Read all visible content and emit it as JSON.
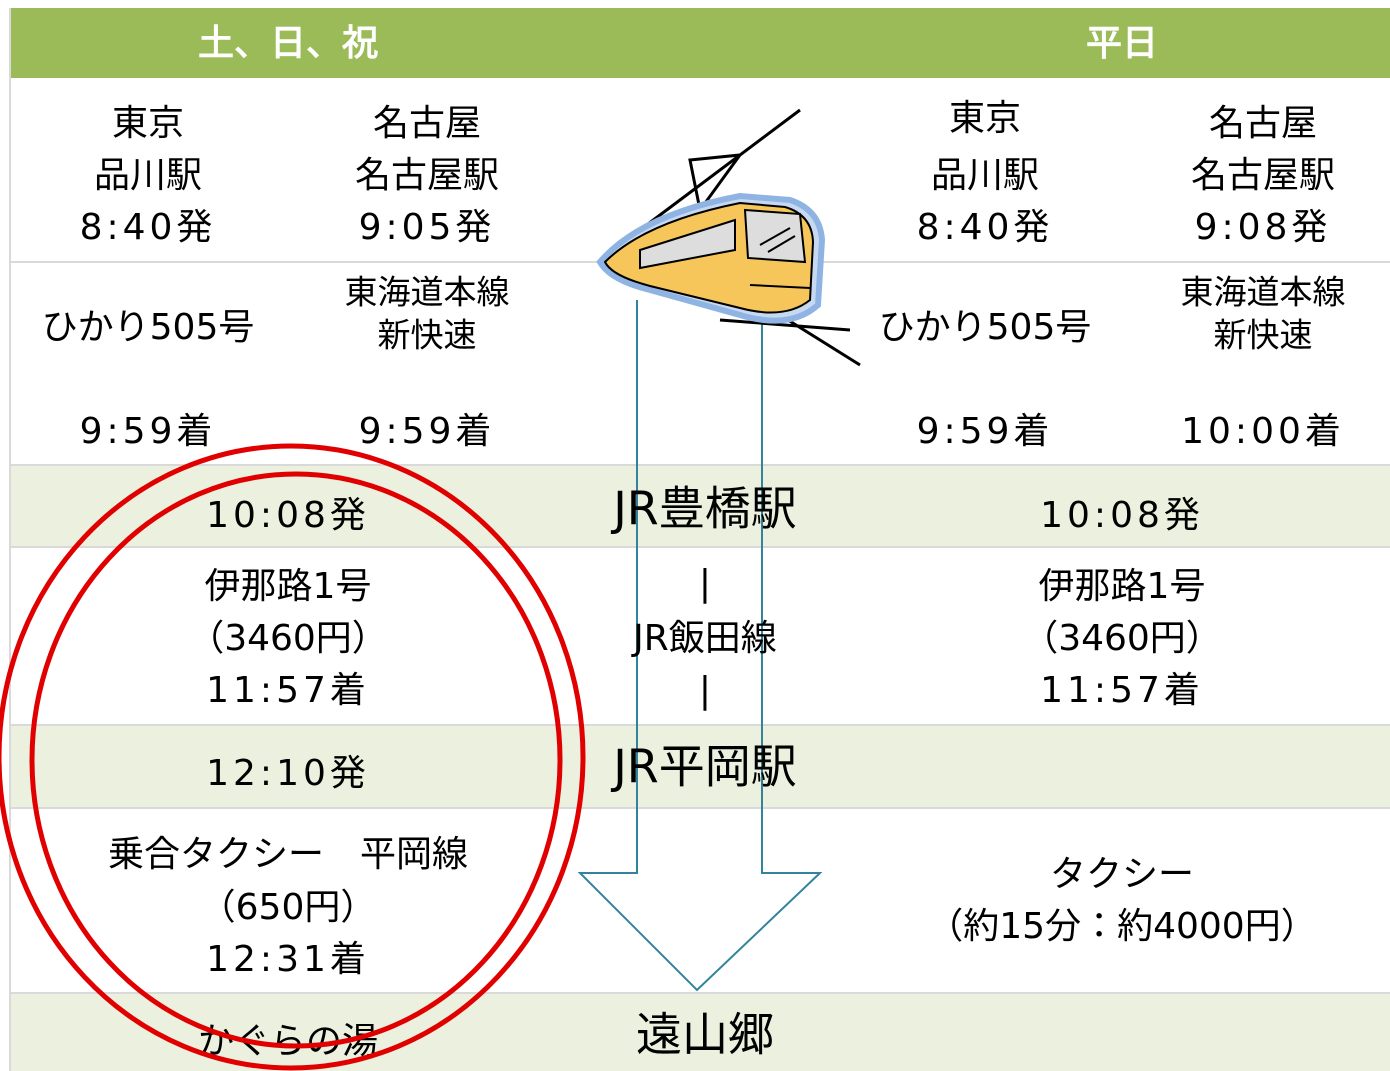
{
  "header": {
    "weekend": "土、日、祝",
    "weekday": "平日"
  },
  "rows": [
    {
      "weekend": [
        [
          "東京",
          "品川駅",
          "8:40発"
        ],
        [
          "名古屋",
          "名古屋駅",
          "9:05発"
        ]
      ],
      "weekday": [
        [
          "東京",
          "品川駅",
          "8:40発"
        ],
        [
          "名古屋",
          "名古屋駅",
          "9:08発"
        ]
      ]
    },
    {
      "weekend": [
        [
          "ひかり505号",
          "9:59着"
        ],
        [
          "東海道本線",
          "新快速",
          "9:59着"
        ]
      ],
      "weekday": [
        [
          "ひかり505号",
          "9:59着"
        ],
        [
          "東海道本線",
          "新快速",
          "10:00着"
        ]
      ]
    },
    {
      "weekend": "10:08発",
      "station": "JR豊橋駅",
      "weekday": "10:08発"
    },
    {
      "weekend": [
        "伊那路1号",
        "（3460円）",
        "11:57着"
      ],
      "station": [
        "|",
        "JR飯田線",
        "|"
      ],
      "weekday": [
        "伊那路1号",
        "（3460円）",
        "11:57着"
      ]
    },
    {
      "weekend": "12:10発",
      "station": "JR平岡駅"
    },
    {
      "weekend": [
        "乗合タクシー　平岡線",
        "（650円）",
        "12:31着"
      ],
      "weekday": [
        "タクシー",
        "（約15分：約4000円）"
      ]
    },
    {
      "weekend": "かぐらの湯",
      "station": "遠山郷"
    }
  ]
}
